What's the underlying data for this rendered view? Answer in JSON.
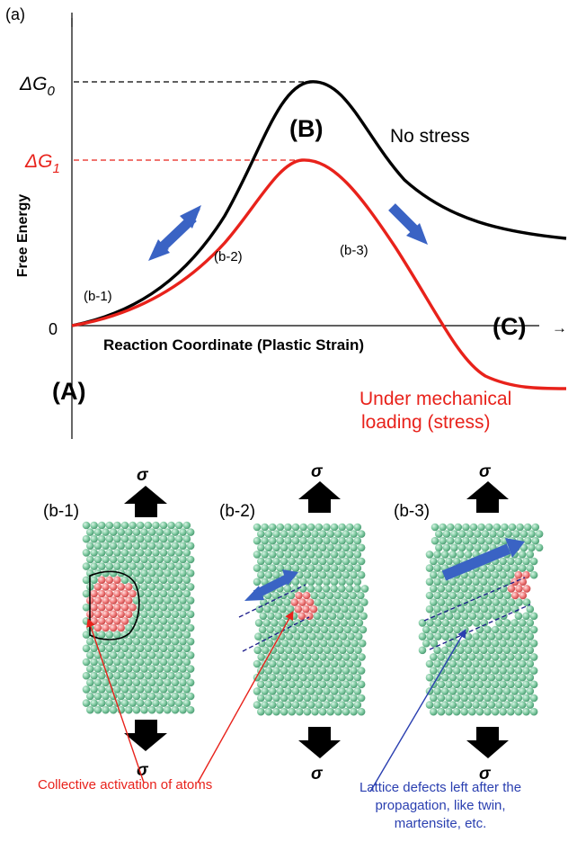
{
  "top_panel": {
    "panel_label": "(a)",
    "y_axis_label": "Free Energy",
    "x_axis_label": "Reaction Coordinate (Plastic Strain)",
    "delta_g0_label": "ΔG",
    "delta_g0_sub": "0",
    "delta_g1_label": "ΔG",
    "delta_g1_sub": "1",
    "zero_label": "0",
    "state_a": "(A)",
    "state_b": "(B)",
    "state_c": "(C)",
    "arrow_glyph": "→",
    "curve_no_stress_label": "No stress",
    "curve_stress_label_line1": "Under mechanical",
    "curve_stress_label_line2": "loading (stress)",
    "point_b1": "(b-1)",
    "point_b2": "(b-2)",
    "point_b3": "(b-3)",
    "colors": {
      "no_stress": "#000000",
      "stress": "#e8221b",
      "arrow": "#3a63c4"
    }
  },
  "bottom_panel": {
    "panels": [
      {
        "label": "(b-1)",
        "sigma_top": "σ",
        "sigma_bottom": "σ"
      },
      {
        "label": "(b-2)",
        "sigma_top": "σ",
        "sigma_bottom": "σ"
      },
      {
        "label": "(b-3)",
        "sigma_top": "σ",
        "sigma_bottom": "σ"
      }
    ],
    "caption_activation": "Collective activation of atoms",
    "caption_defects_line1": "Lattice defects left after the",
    "caption_defects_line2": "propagation, like twin,",
    "caption_defects_line3": "martensite, etc.",
    "colors": {
      "atom_green": "#7ec9a0",
      "atom_red": "#f07a7a",
      "caption_red": "#e8221b",
      "caption_blue": "#2a3fb0"
    }
  }
}
